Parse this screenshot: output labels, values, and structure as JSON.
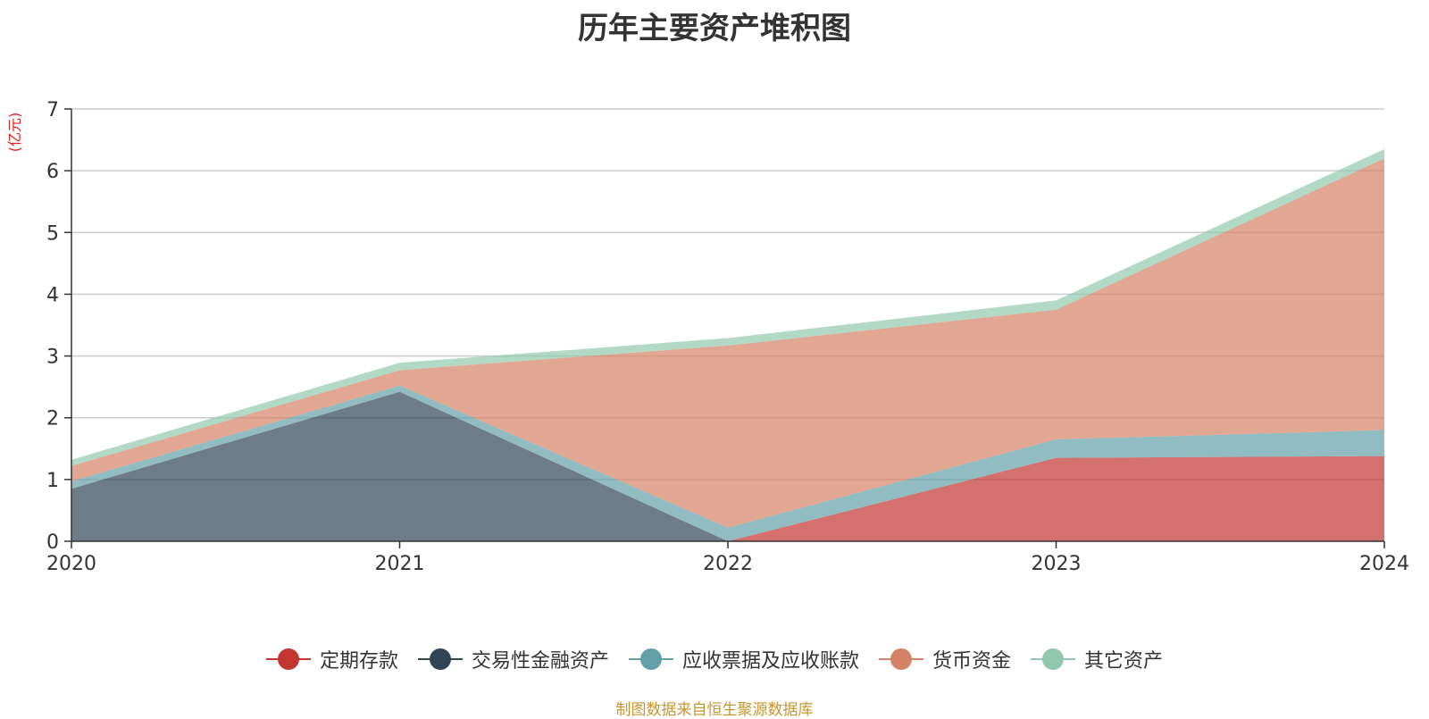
{
  "chart_data": {
    "type": "area",
    "title": "历年主要资产堆积图",
    "ylabel": "(亿元)",
    "xlabel": "",
    "stacked": true,
    "categories": [
      "2020",
      "2021",
      "2022",
      "2023",
      "2024"
    ],
    "ylim": [
      0,
      7
    ],
    "yticks": [
      0,
      1,
      2,
      3,
      4,
      5,
      6,
      7
    ],
    "grid": true,
    "legend_position": "bottom-center",
    "series": [
      {
        "name": "定期存款",
        "color": "#c23531",
        "values": [
          0,
          0,
          0,
          1.35,
          1.38
        ]
      },
      {
        "name": "交易性金融资产",
        "color": "#2f4554",
        "values": [
          0.85,
          2.42,
          0,
          0,
          0
        ]
      },
      {
        "name": "应收票据及应收账款",
        "color": "#61a0a8",
        "values": [
          0.12,
          0.1,
          0.22,
          0.3,
          0.42
        ]
      },
      {
        "name": "货币资金",
        "color": "#d48265",
        "values": [
          0.25,
          0.25,
          2.95,
          2.1,
          4.4
        ]
      },
      {
        "name": "其它资产",
        "color": "#91c7ae",
        "values": [
          0.1,
          0.12,
          0.12,
          0.15,
          0.15
        ]
      }
    ]
  },
  "source_note": "制图数据来自恒生聚源数据库"
}
